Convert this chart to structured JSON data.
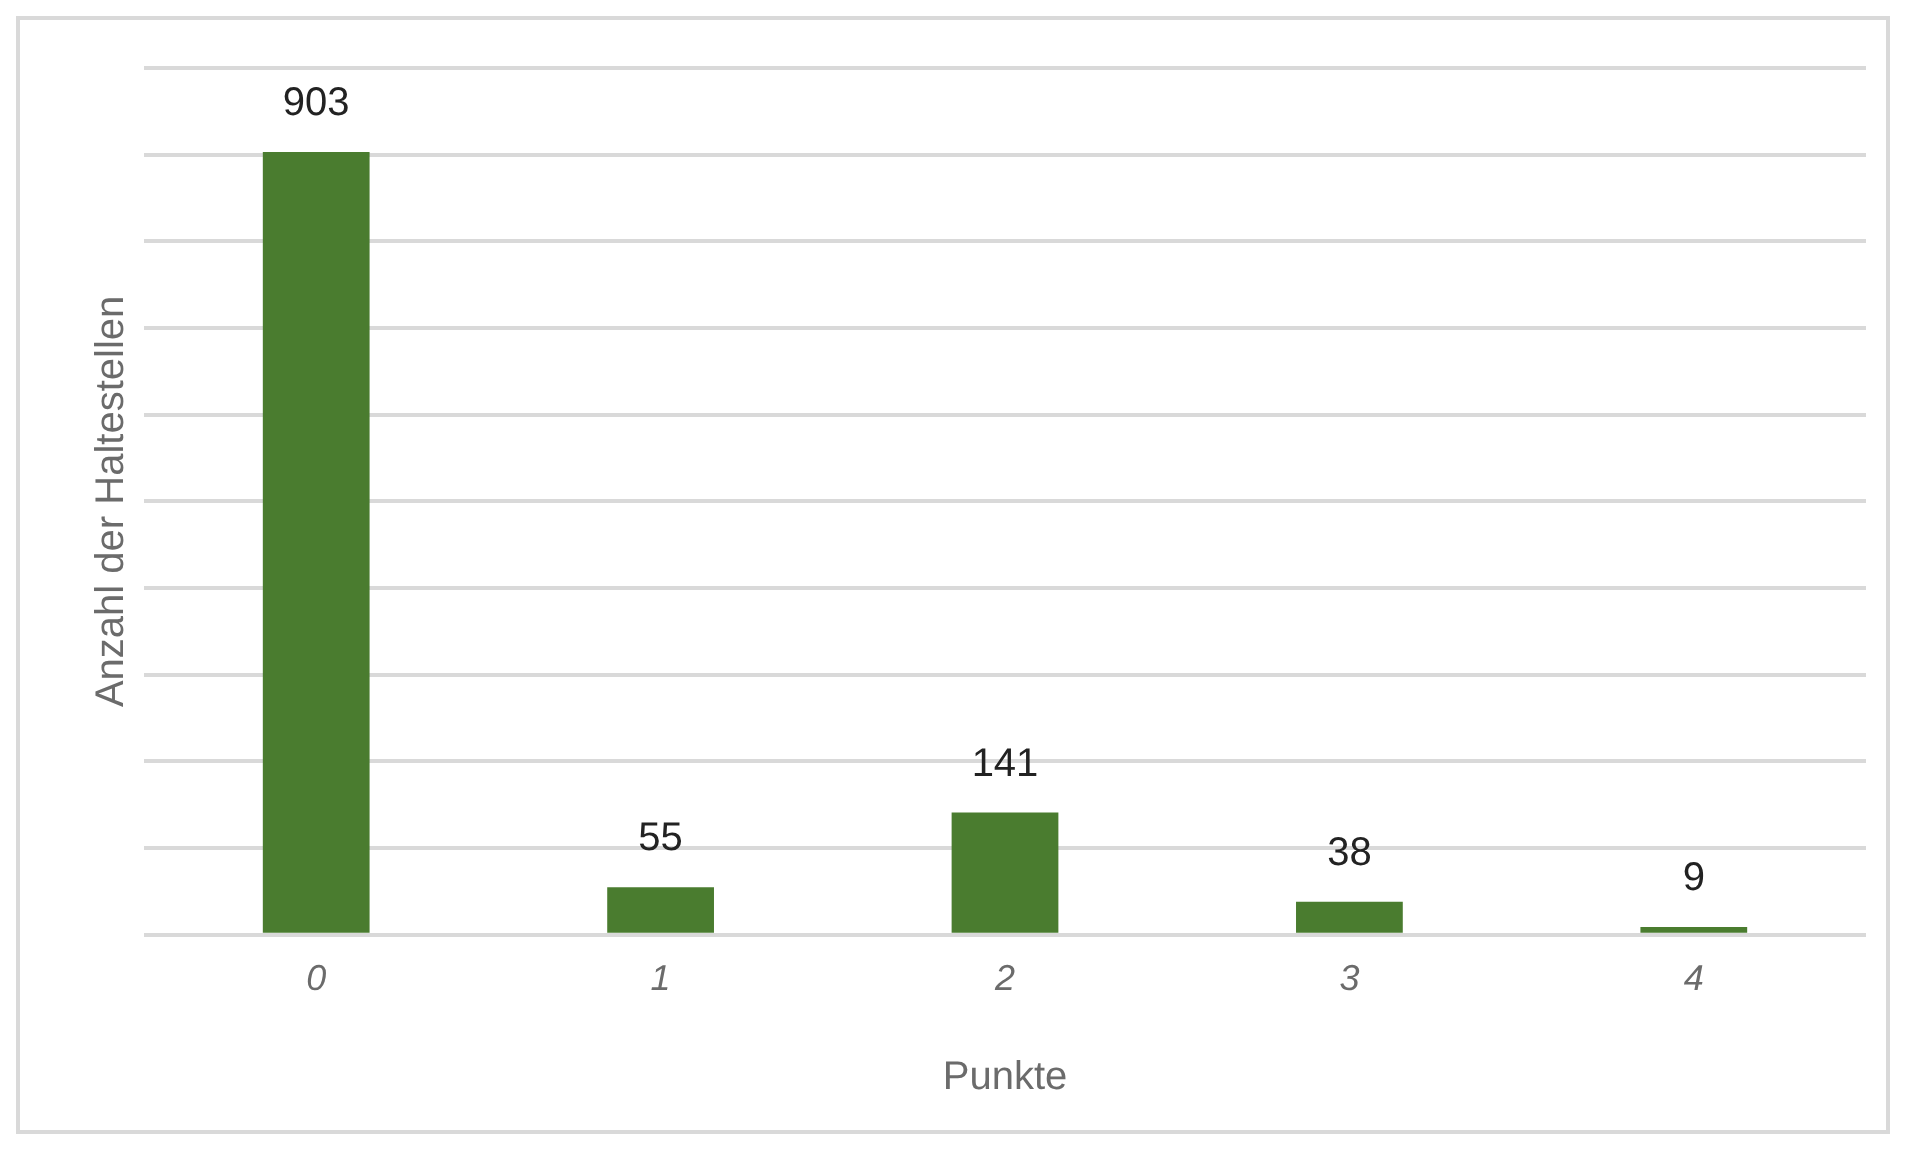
{
  "chart_data": {
    "type": "bar",
    "xlabel": "Punkte",
    "ylabel": "Anzahl der Haltestellen",
    "categories": [
      "0",
      "1",
      "2",
      "3",
      "4"
    ],
    "values": [
      903,
      55,
      141,
      38,
      9
    ],
    "color": "#4a7c2f",
    "ylim": [
      0,
      1000
    ],
    "yticks": [
      {
        "value": 0,
        "label": null
      },
      {
        "value": 100,
        "label": null
      },
      {
        "value": 200,
        "label": null
      },
      {
        "value": 300,
        "label": null
      },
      {
        "value": 400,
        "label": null
      },
      {
        "value": 500,
        "label": null
      },
      {
        "value": 600,
        "label": null
      },
      {
        "value": 700,
        "label": null
      },
      {
        "value": 800,
        "label": null
      },
      {
        "value": 900,
        "label": null
      },
      {
        "value": 1000,
        "label": null
      }
    ],
    "tick_labels": "x",
    "grid": "y",
    "data_labels": true,
    "legend": false
  }
}
